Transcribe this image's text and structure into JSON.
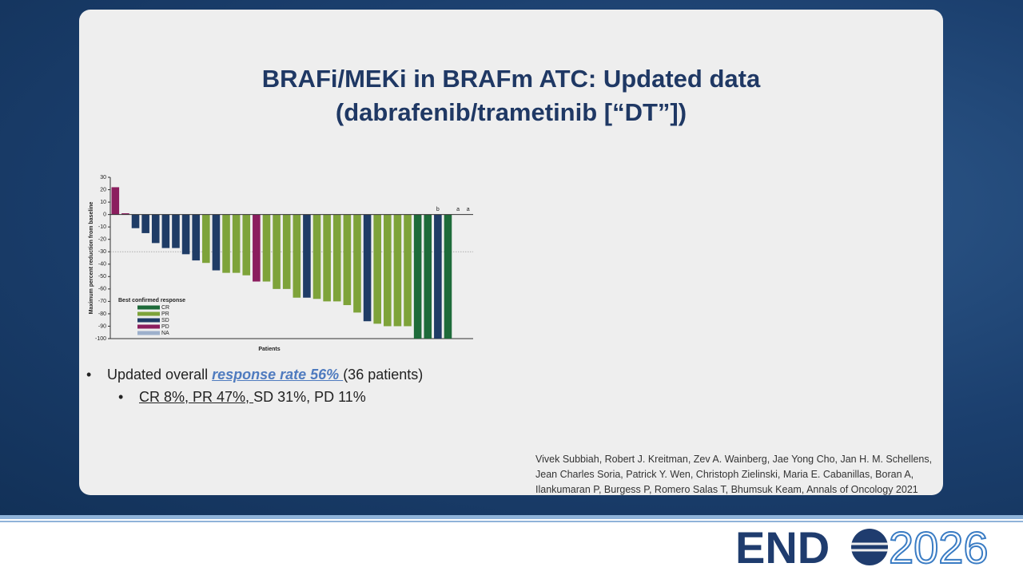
{
  "slide": {
    "title": [
      "BRAFi/MEKi in BRAFm ATC: Updated data",
      "(dabrafenib/trametinib [“DT”])"
    ],
    "bullets": [
      [
        "Updated overall ",
        "response rate 56% ",
        "(36 patients)"
      ],
      [
        "CR 8%, PR 47%, ",
        "SD 31%, PD 11%"
      ]
    ],
    "citation": [
      "Vivek Subbiah, Robert J. Kreitman, Zev A. Wainberg, Jae Yong Cho, Jan H. M. Schellens,",
      "Jean Charles Soria, Patrick Y. Wen, Christoph Zielinski, Maria E. Cabanillas, Boran A,",
      "Ilankumaran P, Burgess P, Romero Salas T, Bhumsuk Keam, Annals of Oncology 2021"
    ],
    "logo": [
      "END",
      "2026"
    ]
  },
  "chart_data": {
    "type": "bar",
    "x_label": "Patients",
    "y_label": "Maximum percent reduction from baseline",
    "legend_title": "Best confirmed response",
    "categories": [
      null,
      null,
      null,
      null,
      null,
      null,
      null,
      null,
      null,
      null,
      null,
      null,
      null,
      null,
      null,
      null,
      null,
      null,
      null,
      null,
      null,
      null,
      null,
      null,
      null,
      null,
      null,
      null,
      null,
      null,
      null,
      null,
      null,
      null,
      null,
      null
    ],
    "series": [
      {
        "name": "CR",
        "color": "#1e6b3a",
        "values": [
          null,
          null,
          null,
          null,
          null,
          null,
          null,
          null,
          null,
          null,
          null,
          null,
          null,
          null,
          null,
          null,
          null,
          null,
          null,
          null,
          null,
          null,
          null,
          null,
          null,
          null,
          null,
          null,
          null,
          null,
          -100,
          -100,
          null,
          -100,
          null,
          null
        ]
      },
      {
        "name": "PR",
        "color": "#7ea33a",
        "values": [
          null,
          null,
          null,
          null,
          null,
          null,
          null,
          null,
          null,
          -39,
          null,
          -47,
          -47,
          -49,
          null,
          -54,
          -60,
          -60,
          -67,
          null,
          -68,
          -70,
          -70,
          -73,
          -79,
          null,
          -88,
          -90,
          -90,
          -90,
          null,
          null,
          null,
          null,
          null,
          null
        ]
      },
      {
        "name": "SD",
        "color": "#1f3c66",
        "values": [
          null,
          null,
          -11,
          -15,
          -23,
          -27,
          -27,
          -32,
          -37,
          null,
          -45,
          null,
          null,
          null,
          null,
          null,
          null,
          null,
          null,
          -67,
          null,
          null,
          null,
          null,
          null,
          -86,
          null,
          null,
          null,
          null,
          null,
          null,
          -100,
          null,
          null,
          null
        ]
      },
      {
        "name": "PD",
        "color": "#8b1e5e",
        "values": [
          22,
          1,
          null,
          null,
          null,
          null,
          null,
          null,
          null,
          null,
          null,
          null,
          null,
          null,
          -54,
          null,
          null,
          null,
          null,
          null,
          null,
          null,
          null,
          null,
          null,
          null,
          null,
          null,
          null,
          null,
          null,
          null,
          null,
          null,
          null,
          null
        ]
      },
      {
        "name": "NA",
        "color": "#9db0cc",
        "values": [
          null,
          null,
          null,
          null,
          null,
          null,
          null,
          null,
          null,
          null,
          null,
          null,
          null,
          null,
          null,
          null,
          null,
          null,
          null,
          null,
          null,
          null,
          null,
          null,
          null,
          null,
          null,
          null,
          null,
          null,
          null,
          null,
          null,
          null,
          null,
          null
        ]
      }
    ],
    "bar_notes": [
      null,
      null,
      null,
      null,
      null,
      null,
      null,
      null,
      null,
      null,
      null,
      null,
      null,
      null,
      null,
      null,
      null,
      null,
      null,
      null,
      null,
      null,
      null,
      null,
      null,
      null,
      null,
      null,
      null,
      null,
      null,
      null,
      "b",
      null,
      "a",
      "a"
    ],
    "reference_line": -30,
    "ylim": [
      -100,
      30
    ],
    "yticks": [
      -100,
      -90,
      -80,
      -70,
      -60,
      -50,
      -40,
      -30,
      -20,
      -10,
      0,
      10,
      20,
      30
    ]
  }
}
